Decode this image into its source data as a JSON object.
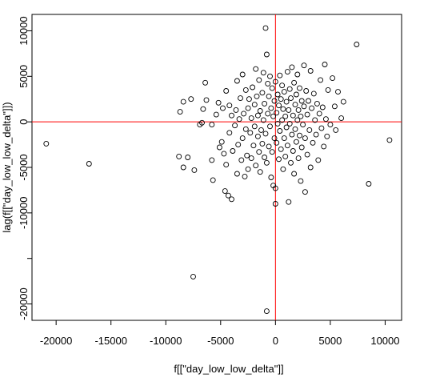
{
  "chart_data": {
    "type": "scatter",
    "title": "",
    "xlabel": "f[[\"day_low_low_delta\"]]",
    "ylabel": "lag(f[[\"day_low_low_delta\"]])",
    "xlim": [
      -22200,
      11500
    ],
    "ylim": [
      -21800,
      11800
    ],
    "x_ticks": [
      -20000,
      -15000,
      -10000,
      -5000,
      0,
      5000,
      10000
    ],
    "x_tick_labels": [
      "-20000",
      "-15000",
      "-10000",
      "-5000",
      "0",
      "5000",
      "10000"
    ],
    "y_ticks": [
      -20000,
      -15000,
      -10000,
      -5000,
      0,
      5000,
      10000
    ],
    "y_tick_labels": [
      "-20000",
      "",
      "-10000",
      "-5000",
      "0",
      "5000",
      "10000"
    ],
    "reference_lines": {
      "vertical_x": 0,
      "horizontal_y": 0,
      "color": "#ff0000"
    },
    "marker": {
      "shape": "open-circle",
      "color": "#000000"
    },
    "grid": false,
    "legend": "none",
    "series": [
      {
        "values": [
          [
            -20900,
            -2400
          ],
          [
            -17000,
            -4600
          ],
          [
            -8700,
            1100
          ],
          [
            -8400,
            2200
          ],
          [
            -7700,
            2500
          ],
          [
            -8800,
            -3800
          ],
          [
            -8000,
            -3900
          ],
          [
            -8400,
            -5000
          ],
          [
            -7400,
            -5300
          ],
          [
            -7500,
            -17000
          ],
          [
            -6600,
            1400
          ],
          [
            -6300,
            2400
          ],
          [
            -6900,
            -300
          ],
          [
            -6700,
            -100
          ],
          [
            -6400,
            4300
          ],
          [
            -5800,
            -300
          ],
          [
            -5800,
            -4200
          ],
          [
            -5700,
            -6400
          ],
          [
            -5400,
            800
          ],
          [
            -5100,
            -2800
          ],
          [
            -5200,
            2100
          ],
          [
            -4900,
            -2200
          ],
          [
            -4800,
            1500
          ],
          [
            -4700,
            -3500
          ],
          [
            -4600,
            -7600
          ],
          [
            -4500,
            3400
          ],
          [
            -4500,
            -4700
          ],
          [
            -4300,
            -8100
          ],
          [
            -4200,
            1800
          ],
          [
            -4200,
            -1200
          ],
          [
            -4000,
            -8500
          ],
          [
            -4000,
            700
          ],
          [
            -3900,
            -3200
          ],
          [
            -3700,
            -400
          ],
          [
            -3600,
            1300
          ],
          [
            -3500,
            4500
          ],
          [
            -3500,
            -5700
          ],
          [
            -3400,
            -2500
          ],
          [
            -3300,
            300
          ],
          [
            -3200,
            2600
          ],
          [
            -3100,
            -4200
          ],
          [
            -3000,
            5200
          ],
          [
            -3000,
            -1800
          ],
          [
            -2900,
            900
          ],
          [
            -2800,
            -6000
          ],
          [
            -2700,
            3500
          ],
          [
            -2700,
            -800
          ],
          [
            -2600,
            -3700
          ],
          [
            -2500,
            1500
          ],
          [
            -2500,
            -5200
          ],
          [
            -2400,
            2500
          ],
          [
            -2300,
            -1200
          ],
          [
            -2200,
            400
          ],
          [
            -2200,
            -4000
          ],
          [
            -2100,
            3800
          ],
          [
            -2000,
            -2600
          ],
          [
            -1900,
            1900
          ],
          [
            -1900,
            -500
          ],
          [
            -1800,
            5800
          ],
          [
            -1800,
            -4800
          ],
          [
            -1700,
            2800
          ],
          [
            -1600,
            -1600
          ],
          [
            -1600,
            700
          ],
          [
            -1500,
            -3300
          ],
          [
            -1500,
            4600
          ],
          [
            -1400,
            1200
          ],
          [
            -1400,
            -5500
          ],
          [
            -1300,
            -900
          ],
          [
            -1200,
            3200
          ],
          [
            -1200,
            -2400
          ],
          [
            -1100,
            200
          ],
          [
            -1100,
            5400
          ],
          [
            -1000,
            -3900
          ],
          [
            -1000,
            2000
          ],
          [
            -900,
            -1300
          ],
          [
            -900,
            10300
          ],
          [
            -800,
            7400
          ],
          [
            -800,
            -20800
          ],
          [
            -800,
            -4500
          ],
          [
            -700,
            4200
          ],
          [
            -700,
            900
          ],
          [
            -600,
            -2700
          ],
          [
            -600,
            2800
          ],
          [
            -500,
            -500
          ],
          [
            -500,
            5000
          ],
          [
            -400,
            1500
          ],
          [
            -400,
            -6100
          ],
          [
            -300,
            -3300
          ],
          [
            -300,
            3700
          ],
          [
            -200,
            -7000
          ],
          [
            -200,
            600
          ],
          [
            -100,
            -1800
          ],
          [
            -100,
            2300
          ],
          [
            0,
            -9000
          ],
          [
            0,
            4400
          ],
          [
            0,
            -7300
          ],
          [
            100,
            1000
          ],
          [
            100,
            -2300
          ],
          [
            200,
            3000
          ],
          [
            200,
            -200
          ],
          [
            300,
            -4100
          ],
          [
            300,
            1800
          ],
          [
            400,
            5100
          ],
          [
            400,
            -1000
          ],
          [
            500,
            2500
          ],
          [
            500,
            -3000
          ],
          [
            600,
            200
          ],
          [
            600,
            4000
          ],
          [
            700,
            -5200
          ],
          [
            700,
            1400
          ],
          [
            800,
            -1800
          ],
          [
            800,
            3300
          ],
          [
            900,
            600
          ],
          [
            900,
            -3800
          ],
          [
            1000,
            2200
          ],
          [
            1000,
            -600
          ],
          [
            1100,
            5500
          ],
          [
            1100,
            -2600
          ],
          [
            1200,
            1300
          ],
          [
            1200,
            -8800
          ],
          [
            1300,
            3600
          ],
          [
            1300,
            -200
          ],
          [
            1400,
            -4500
          ],
          [
            1400,
            2600
          ],
          [
            1500,
            -1400
          ],
          [
            1500,
            6000
          ],
          [
            1600,
            700
          ],
          [
            1600,
            -3200
          ],
          [
            1700,
            4300
          ],
          [
            1700,
            -5700
          ],
          [
            1800,
            1900
          ],
          [
            1800,
            -800
          ],
          [
            1900,
            3000
          ],
          [
            1900,
            -2200
          ],
          [
            2000,
            200
          ],
          [
            2000,
            5200
          ],
          [
            2100,
            -4000
          ],
          [
            2100,
            1300
          ],
          [
            2200,
            -1500
          ],
          [
            2200,
            3700
          ],
          [
            2300,
            -6500
          ],
          [
            2300,
            600
          ],
          [
            2400,
            2300
          ],
          [
            2400,
            -2800
          ],
          [
            2500,
            -300
          ],
          [
            2600,
            6200
          ],
          [
            2600,
            1700
          ],
          [
            2700,
            -7700
          ],
          [
            2700,
            -1800
          ],
          [
            2800,
            3400
          ],
          [
            2900,
            800
          ],
          [
            2900,
            -3600
          ],
          [
            3000,
            2300
          ],
          [
            3100,
            -900
          ],
          [
            3200,
            5600
          ],
          [
            3200,
            -5000
          ],
          [
            3300,
            1500
          ],
          [
            3400,
            -2300
          ],
          [
            3500,
            3100
          ],
          [
            3600,
            200
          ],
          [
            3700,
            -1400
          ],
          [
            3800,
            2000
          ],
          [
            3900,
            -4200
          ],
          [
            4000,
            900
          ],
          [
            4100,
            4600
          ],
          [
            4200,
            -700
          ],
          [
            4300,
            1600
          ],
          [
            4400,
            -2700
          ],
          [
            4500,
            6300
          ],
          [
            4600,
            300
          ],
          [
            4700,
            -1600
          ],
          [
            4800,
            3500
          ],
          [
            5000,
            -300
          ],
          [
            5200,
            4800
          ],
          [
            5400,
            1700
          ],
          [
            5500,
            -900
          ],
          [
            5700,
            3300
          ],
          [
            6000,
            400
          ],
          [
            6200,
            2200
          ],
          [
            7400,
            8500
          ],
          [
            8500,
            -6800
          ],
          [
            10400,
            -2000
          ]
        ]
      }
    ]
  }
}
